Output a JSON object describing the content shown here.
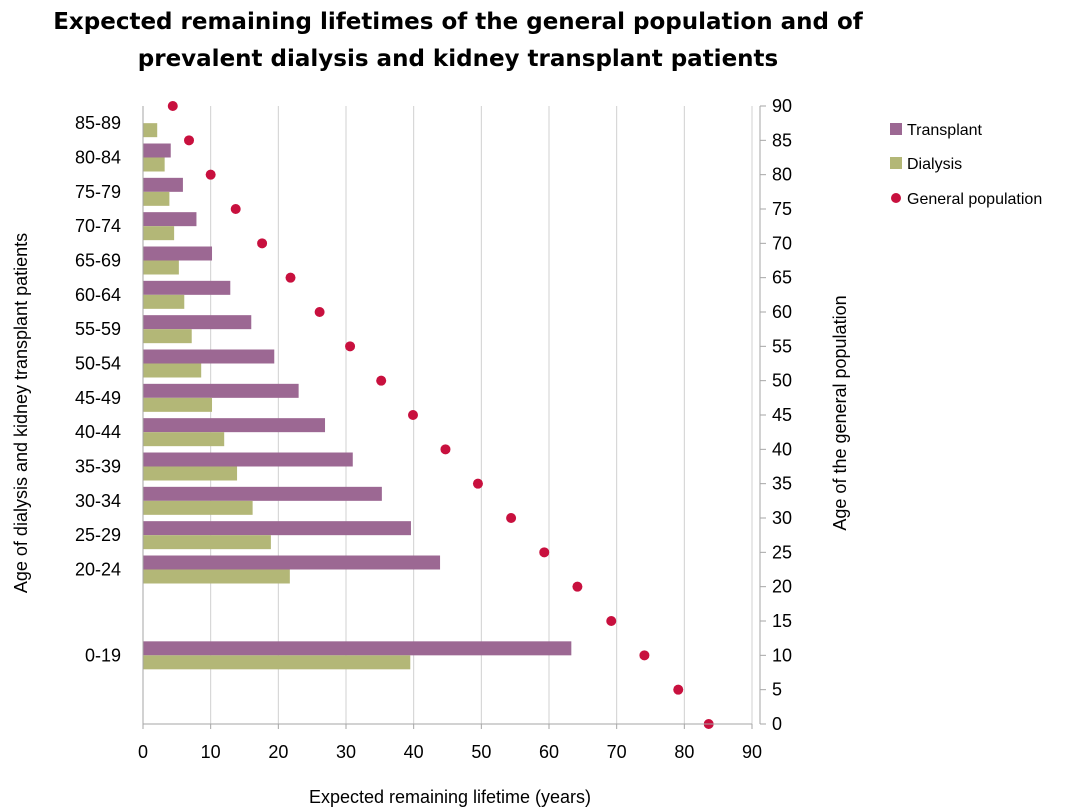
{
  "chart_data": {
    "type": "bar",
    "orientation": "horizontal",
    "title_line1": "Expected remaining lifetimes of the general population and of",
    "title_line2": "prevalent dialysis and kidney transplant patients",
    "xlabel": "Expected remaining lifetime (years)",
    "ylabel_left": "Age of dialysis  and  kidney transplant patients",
    "ylabel_right": "Age of the general population",
    "xlim": [
      0,
      90
    ],
    "x_ticks": [
      0,
      10,
      20,
      30,
      40,
      50,
      60,
      70,
      80,
      90
    ],
    "y_right_lim": [
      0,
      90
    ],
    "y_right_ticks": [
      0,
      5,
      10,
      15,
      20,
      25,
      30,
      35,
      40,
      45,
      50,
      55,
      60,
      65,
      70,
      75,
      80,
      85,
      90
    ],
    "grid": "vertical",
    "legend_position": "right",
    "bar_groups": [
      {
        "label": "0-19",
        "age_mid": 10,
        "transplant": 63.3,
        "dialysis": 39.5
      },
      {
        "label": "20-24",
        "age_mid": 22.5,
        "transplant": 43.9,
        "dialysis": 21.7
      },
      {
        "label": "25-29",
        "age_mid": 27.5,
        "transplant": 39.6,
        "dialysis": 18.9
      },
      {
        "label": "30-34",
        "age_mid": 32.5,
        "transplant": 35.3,
        "dialysis": 16.2
      },
      {
        "label": "35-39",
        "age_mid": 37.5,
        "transplant": 31.0,
        "dialysis": 13.9
      },
      {
        "label": "40-44",
        "age_mid": 42.5,
        "transplant": 26.9,
        "dialysis": 12.0
      },
      {
        "label": "45-49",
        "age_mid": 47.5,
        "transplant": 23.0,
        "dialysis": 10.2
      },
      {
        "label": "50-54",
        "age_mid": 52.5,
        "transplant": 19.4,
        "dialysis": 8.6
      },
      {
        "label": "55-59",
        "age_mid": 57.5,
        "transplant": 16.0,
        "dialysis": 7.2
      },
      {
        "label": "60-64",
        "age_mid": 62.5,
        "transplant": 12.9,
        "dialysis": 6.1
      },
      {
        "label": "65-69",
        "age_mid": 67.5,
        "transplant": 10.2,
        "dialysis": 5.3
      },
      {
        "label": "70-74",
        "age_mid": 72.5,
        "transplant": 7.9,
        "dialysis": 4.6
      },
      {
        "label": "75-79",
        "age_mid": 77.5,
        "transplant": 5.9,
        "dialysis": 3.9
      },
      {
        "label": "80-84",
        "age_mid": 82.5,
        "transplant": 4.1,
        "dialysis": 3.2
      },
      {
        "label": "85-89",
        "age_mid": 87.5,
        "transplant": null,
        "dialysis": 2.1
      }
    ],
    "series": [
      {
        "name": "Transplant",
        "kind": "bar",
        "color": "#9c6893"
      },
      {
        "name": "Dialysis",
        "kind": "bar",
        "color": "#b3b777"
      },
      {
        "name": "General population",
        "kind": "scatter",
        "color": "#c8103e",
        "points": [
          {
            "age": 0,
            "value": 83.6
          },
          {
            "age": 5,
            "value": 79.1
          },
          {
            "age": 10,
            "value": 74.1
          },
          {
            "age": 15,
            "value": 69.2
          },
          {
            "age": 20,
            "value": 64.2
          },
          {
            "age": 25,
            "value": 59.3
          },
          {
            "age": 30,
            "value": 54.4
          },
          {
            "age": 35,
            "value": 49.5
          },
          {
            "age": 40,
            "value": 44.7
          },
          {
            "age": 45,
            "value": 39.9
          },
          {
            "age": 50,
            "value": 35.2
          },
          {
            "age": 55,
            "value": 30.6
          },
          {
            "age": 60,
            "value": 26.1
          },
          {
            "age": 65,
            "value": 21.8
          },
          {
            "age": 70,
            "value": 17.6
          },
          {
            "age": 75,
            "value": 13.7
          },
          {
            "age": 80,
            "value": 10.0
          },
          {
            "age": 85,
            "value": 6.8
          },
          {
            "age": 90,
            "value": 4.4
          }
        ]
      }
    ]
  }
}
